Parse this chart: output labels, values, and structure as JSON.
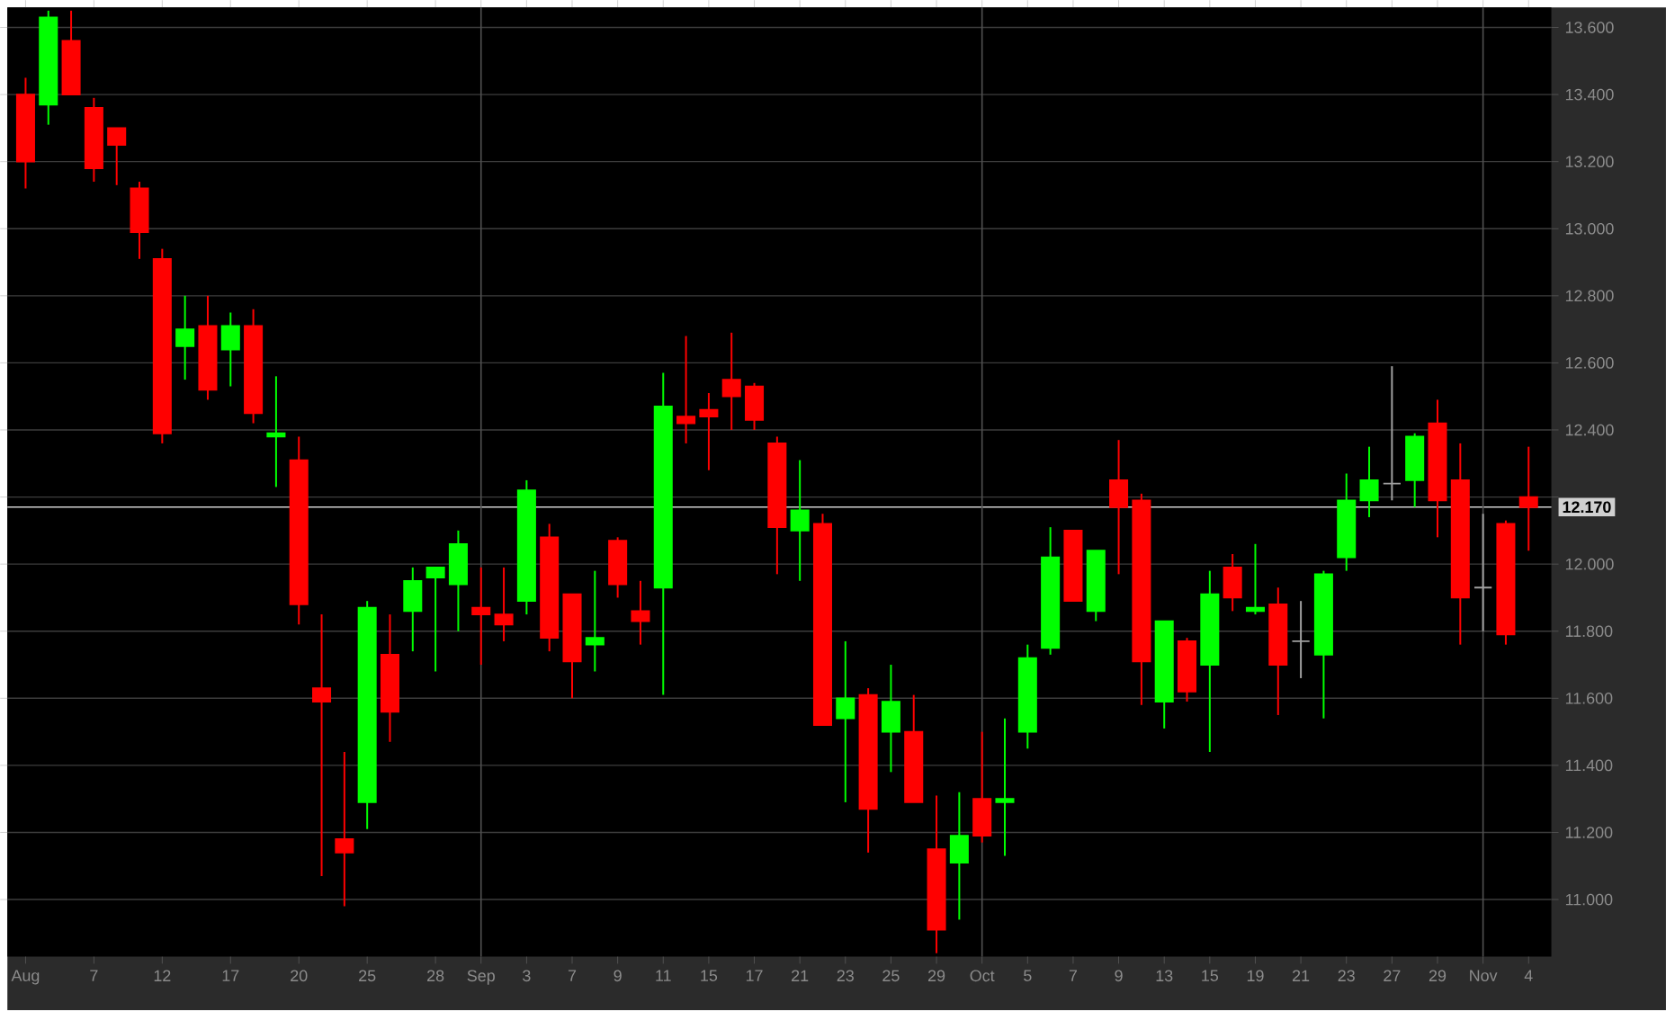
{
  "chart_data": {
    "type": "candlestick",
    "categories": [
      "Aug",
      null,
      null,
      "7",
      null,
      null,
      "12",
      null,
      null,
      "17",
      null,
      null,
      "20",
      null,
      null,
      "25",
      null,
      null,
      "28",
      null,
      "Sep",
      null,
      "3",
      null,
      "7",
      null,
      "9",
      null,
      "11",
      null,
      "15",
      null,
      "17",
      null,
      "21",
      null,
      "23",
      null,
      "25",
      null,
      "29",
      null,
      "Oct",
      null,
      "5",
      null,
      "7",
      null,
      "9",
      null,
      "13",
      null,
      "15",
      null,
      "19",
      null,
      "21",
      null,
      "23",
      null,
      "27",
      null,
      "29",
      null,
      "Nov",
      null,
      "4"
    ],
    "ohlc": [
      [
        13.4,
        13.45,
        13.12,
        13.2
      ],
      [
        13.37,
        13.65,
        13.31,
        13.63
      ],
      [
        13.56,
        13.65,
        13.4,
        13.4
      ],
      [
        13.36,
        13.39,
        13.14,
        13.18
      ],
      [
        13.3,
        13.3,
        13.13,
        13.25
      ],
      [
        13.12,
        13.14,
        12.91,
        12.99
      ],
      [
        12.91,
        12.94,
        12.36,
        12.39
      ],
      [
        12.65,
        12.8,
        12.55,
        12.7
      ],
      [
        12.71,
        12.8,
        12.49,
        12.52
      ],
      [
        12.64,
        12.75,
        12.53,
        12.71
      ],
      [
        12.71,
        12.76,
        12.42,
        12.45
      ],
      [
        12.38,
        12.56,
        12.23,
        12.39
      ],
      [
        12.31,
        12.38,
        11.82,
        11.88
      ],
      [
        11.63,
        11.85,
        11.07,
        11.59
      ],
      [
        11.18,
        11.44,
        10.98,
        11.14
      ],
      [
        11.29,
        11.89,
        11.21,
        11.87
      ],
      [
        11.73,
        11.85,
        11.47,
        11.56
      ],
      [
        11.86,
        11.99,
        11.74,
        11.95
      ],
      [
        11.96,
        11.99,
        11.68,
        11.99
      ],
      [
        11.94,
        12.1,
        11.8,
        12.06
      ],
      [
        11.87,
        11.99,
        11.7,
        11.85
      ],
      [
        11.85,
        11.99,
        11.77,
        11.82
      ],
      [
        11.89,
        12.25,
        11.85,
        12.22
      ],
      [
        12.08,
        12.12,
        11.74,
        11.78
      ],
      [
        11.91,
        11.91,
        11.6,
        11.71
      ],
      [
        11.76,
        11.98,
        11.68,
        11.78
      ],
      [
        12.07,
        12.08,
        11.9,
        11.94
      ],
      [
        11.86,
        11.95,
        11.76,
        11.83
      ],
      [
        11.93,
        12.57,
        11.61,
        12.47
      ],
      [
        12.44,
        12.68,
        12.36,
        12.42
      ],
      [
        12.46,
        12.51,
        12.28,
        12.44
      ],
      [
        12.55,
        12.69,
        12.4,
        12.5
      ],
      [
        12.53,
        12.54,
        12.4,
        12.43
      ],
      [
        12.36,
        12.38,
        11.97,
        12.11
      ],
      [
        12.1,
        12.31,
        11.95,
        12.16
      ],
      [
        12.12,
        12.15,
        11.52,
        11.52
      ],
      [
        11.54,
        11.77,
        11.29,
        11.6
      ],
      [
        11.61,
        11.63,
        11.14,
        11.27
      ],
      [
        11.5,
        11.7,
        11.38,
        11.59
      ],
      [
        11.5,
        11.61,
        11.29,
        11.29
      ],
      [
        11.15,
        11.31,
        10.84,
        10.91
      ],
      [
        11.11,
        11.32,
        10.94,
        11.19
      ],
      [
        11.3,
        11.5,
        11.17,
        11.19
      ],
      [
        11.29,
        11.54,
        11.13,
        11.3
      ],
      [
        11.5,
        11.76,
        11.45,
        11.72
      ],
      [
        11.75,
        12.11,
        11.73,
        12.02
      ],
      [
        12.1,
        12.1,
        11.89,
        11.89
      ],
      [
        11.86,
        12.04,
        11.83,
        12.04
      ],
      [
        12.25,
        12.37,
        11.97,
        12.17
      ],
      [
        12.19,
        12.21,
        11.58,
        11.71
      ],
      [
        11.59,
        11.83,
        11.51,
        11.83
      ],
      [
        11.77,
        11.78,
        11.59,
        11.62
      ],
      [
        11.7,
        11.98,
        11.44,
        11.91
      ],
      [
        11.99,
        12.03,
        11.86,
        11.9
      ],
      [
        11.86,
        12.06,
        11.85,
        11.87
      ],
      [
        11.88,
        11.93,
        11.55,
        11.7
      ],
      [
        11.77,
        11.89,
        11.66,
        11.77
      ],
      [
        11.73,
        11.98,
        11.54,
        11.97
      ],
      [
        12.02,
        12.27,
        11.98,
        12.19
      ],
      [
        12.19,
        12.35,
        12.14,
        12.25
      ],
      [
        12.24,
        12.59,
        12.19,
        12.24
      ],
      [
        12.25,
        12.39,
        12.17,
        12.38
      ],
      [
        12.42,
        12.49,
        12.08,
        12.19
      ],
      [
        12.25,
        12.36,
        11.76,
        11.9
      ],
      [
        11.93,
        12.15,
        11.8,
        11.93
      ],
      [
        12.12,
        12.13,
        11.76,
        11.79
      ],
      [
        12.2,
        12.35,
        12.04,
        12.17
      ]
    ],
    "colors": [
      "#ff0000",
      "#00ff00",
      "#ff0000",
      "#ff0000",
      "#ff0000",
      "#ff0000",
      "#ff0000",
      "#00ff00",
      "#ff0000",
      "#00ff00",
      "#ff0000",
      "#00ff00",
      "#ff0000",
      "#ff0000",
      "#ff0000",
      "#00ff00",
      "#ff0000",
      "#00ff00",
      "#00ff00",
      "#00ff00",
      "#ff0000",
      "#ff0000",
      "#00ff00",
      "#ff0000",
      "#ff0000",
      "#00ff00",
      "#ff0000",
      "#ff0000",
      "#00ff00",
      "#ff0000",
      "#ff0000",
      "#ff0000",
      "#ff0000",
      "#ff0000",
      "#00ff00",
      "#ff0000",
      "#00ff00",
      "#ff0000",
      "#00ff00",
      "#ff0000",
      "#ff0000",
      "#00ff00",
      "#ff0000",
      "#00ff00",
      "#00ff00",
      "#00ff00",
      "#ff0000",
      "#00ff00",
      "#ff0000",
      "#ff0000",
      "#00ff00",
      "#ff0000",
      "#00ff00",
      "#ff0000",
      "#00ff00",
      "#ff0000",
      "#a0a0a0",
      "#00ff00",
      "#00ff00",
      "#00ff00",
      "#a0a0a0",
      "#00ff00",
      "#ff0000",
      "#ff0000",
      "#a0a0a0",
      "#ff0000",
      "#ff0000"
    ],
    "ylim": [
      10.83,
      13.66
    ],
    "yticks": [
      {
        "value": 11.0,
        "label": "11.000"
      },
      {
        "value": 11.2,
        "label": "11.200"
      },
      {
        "value": 11.4,
        "label": "11.400"
      },
      {
        "value": 11.6,
        "label": "11.600"
      },
      {
        "value": 11.8,
        "label": "11.800"
      },
      {
        "value": 12.0,
        "label": "12.000"
      },
      {
        "value": 12.2,
        "label": null
      },
      {
        "value": 12.4,
        "label": "12.400"
      },
      {
        "value": 12.6,
        "label": "12.600"
      },
      {
        "value": 12.8,
        "label": "12.800"
      },
      {
        "value": 13.0,
        "label": "13.000"
      },
      {
        "value": 13.2,
        "label": "13.200"
      },
      {
        "value": 13.4,
        "label": "13.400"
      },
      {
        "value": 13.6,
        "label": "13.600"
      }
    ],
    "grid": "y",
    "ref_lines": [
      {
        "axis": "y",
        "value": 12.17,
        "label": "12.170",
        "color": "#d0d0d0"
      },
      {
        "axis": "x",
        "value": "Sep",
        "color": "#505050"
      },
      {
        "axis": "x",
        "value": "Oct",
        "color": "#505050"
      },
      {
        "axis": "x",
        "value": "Nov",
        "color": "#505050"
      }
    ]
  }
}
